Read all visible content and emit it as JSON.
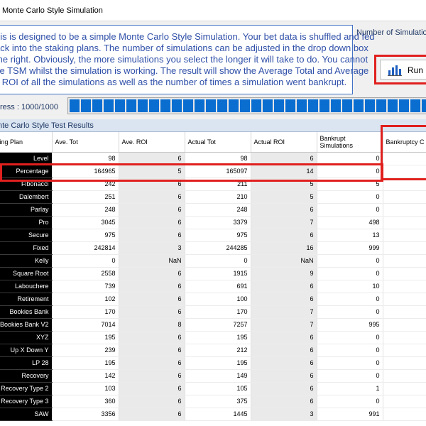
{
  "window": {
    "title": "Monte Carlo Style Simulation"
  },
  "description": {
    "lines": [
      "his is designed to be a simple Monte Carlo Style Simulation. Your bet data is shuffled and fed",
      "ack into the staking plans. The number of simulations can be adjusted in the drop down box",
      "the right. Obviously, the more simulations you select the longer it will take to do. You cannot",
      "se TSM whilst the simulation is working. The result will show the Average Total and Average",
      "ROI of all the simulations as well as the number of times a simulation went bankrupt."
    ]
  },
  "controls": {
    "num_simulations_label": "Number of Simulatio",
    "run_label": "Run M",
    "progress_label": "ress : 1000/1000",
    "progress_fraction": 1.0
  },
  "grid": {
    "title": "nte Carlo Style Test Results",
    "columns": [
      "king Plan",
      "Ave. Tot",
      "Ave. ROI",
      "Actual Tot",
      "Actual ROI",
      "Bankrupt Simulations",
      "Bankruptcy C %"
    ],
    "rows": [
      {
        "plan": "Level",
        "ave_tot": "98",
        "ave_roi": "6",
        "act_tot": "98",
        "act_roi": "6",
        "bankrupt": "0"
      },
      {
        "plan": "Percentage",
        "ave_tot": "164965",
        "ave_roi": "5",
        "act_tot": "165097",
        "act_roi": "14",
        "bankrupt": "0"
      },
      {
        "plan": "Fibonacci",
        "ave_tot": "242",
        "ave_roi": "6",
        "act_tot": "211",
        "act_roi": "5",
        "bankrupt": "5"
      },
      {
        "plan": "Dalembert",
        "ave_tot": "251",
        "ave_roi": "6",
        "act_tot": "210",
        "act_roi": "5",
        "bankrupt": "0"
      },
      {
        "plan": "Parlay",
        "ave_tot": "248",
        "ave_roi": "6",
        "act_tot": "248",
        "act_roi": "6",
        "bankrupt": "0"
      },
      {
        "plan": "Pro",
        "ave_tot": "3045",
        "ave_roi": "6",
        "act_tot": "3379",
        "act_roi": "7",
        "bankrupt": "498"
      },
      {
        "plan": "Secure",
        "ave_tot": "975",
        "ave_roi": "6",
        "act_tot": "975",
        "act_roi": "6",
        "bankrupt": "13"
      },
      {
        "plan": "Fixed",
        "ave_tot": "242814",
        "ave_roi": "3",
        "act_tot": "244285",
        "act_roi": "16",
        "bankrupt": "999"
      },
      {
        "plan": "Kelly",
        "ave_tot": "0",
        "ave_roi": "NaN",
        "act_tot": "0",
        "act_roi": "NaN",
        "bankrupt": "0"
      },
      {
        "plan": "Square Root",
        "ave_tot": "2558",
        "ave_roi": "6",
        "act_tot": "1915",
        "act_roi": "9",
        "bankrupt": "0"
      },
      {
        "plan": "Labouchere",
        "ave_tot": "739",
        "ave_roi": "6",
        "act_tot": "691",
        "act_roi": "6",
        "bankrupt": "10"
      },
      {
        "plan": "Retirement",
        "ave_tot": "102",
        "ave_roi": "6",
        "act_tot": "100",
        "act_roi": "6",
        "bankrupt": "0"
      },
      {
        "plan": "Bookies Bank",
        "ave_tot": "170",
        "ave_roi": "6",
        "act_tot": "170",
        "act_roi": "7",
        "bankrupt": "0"
      },
      {
        "plan": "Bookies Bank V2",
        "ave_tot": "7014",
        "ave_roi": "8",
        "act_tot": "7257",
        "act_roi": "7",
        "bankrupt": "995"
      },
      {
        "plan": "XYZ",
        "ave_tot": "195",
        "ave_roi": "6",
        "act_tot": "195",
        "act_roi": "6",
        "bankrupt": "0"
      },
      {
        "plan": "Up X Down Y",
        "ave_tot": "239",
        "ave_roi": "6",
        "act_tot": "212",
        "act_roi": "6",
        "bankrupt": "0"
      },
      {
        "plan": "LP 28",
        "ave_tot": "195",
        "ave_roi": "6",
        "act_tot": "195",
        "act_roi": "6",
        "bankrupt": "0"
      },
      {
        "plan": "Recovery",
        "ave_tot": "142",
        "ave_roi": "6",
        "act_tot": "149",
        "act_roi": "6",
        "bankrupt": "0"
      },
      {
        "plan": "Recovery Type 2",
        "ave_tot": "103",
        "ave_roi": "6",
        "act_tot": "105",
        "act_roi": "6",
        "bankrupt": "1"
      },
      {
        "plan": "Recovery Type 3",
        "ave_tot": "360",
        "ave_roi": "6",
        "act_tot": "375",
        "act_roi": "6",
        "bankrupt": "0"
      },
      {
        "plan": "SAW",
        "ave_tot": "3356",
        "ave_roi": "6",
        "act_tot": "1445",
        "act_roi": "3",
        "bankrupt": "991"
      }
    ]
  },
  "colors": {
    "accent": "#0a6ed1",
    "highlight": "#e0201e",
    "desc_text": "#2e4fa8",
    "plan_bg": "#000000"
  },
  "icons": {
    "run": "bar-chart-icon"
  }
}
